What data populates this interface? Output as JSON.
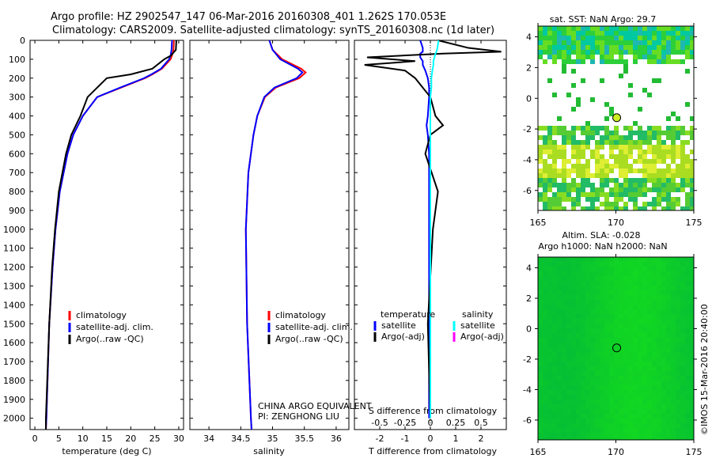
{
  "title": {
    "line1": "Argo profile: HZ 2902547_147 06-Mar-2016 20160308_401 1.262S 170.053E",
    "line2": "Climatology: CARS2009. Satellite-adjusted climatology: synTS_20160308.nc (1d later)"
  },
  "colors": {
    "climatology": "#ff0000",
    "satellite": "#0000ff",
    "argo": "#000000",
    "sal_satellite": "#00ffff",
    "sal_argo": "#ff00ff"
  },
  "depth_ticks": [
    0,
    100,
    200,
    300,
    400,
    500,
    600,
    700,
    800,
    900,
    1000,
    1100,
    1200,
    1300,
    1400,
    1500,
    1600,
    1700,
    1800,
    1900,
    2000
  ],
  "chart_data": [
    {
      "type": "line",
      "xlabel": "temperature (deg C)",
      "xlim": [
        -1,
        31
      ],
      "ylim": [
        2060,
        0
      ],
      "xticks": [
        0,
        5,
        10,
        15,
        20,
        25,
        30
      ],
      "legend": [
        "climatology",
        "satellite-adj. clim.",
        "Argo(..raw -QC)"
      ],
      "depth": [
        0,
        50,
        80,
        100,
        150,
        180,
        200,
        250,
        300,
        400,
        500,
        600,
        800,
        1000,
        1200,
        1500,
        2000,
        2060
      ],
      "series": [
        {
          "name": "climatology",
          "values": [
            29,
            28.9,
            28.6,
            28.3,
            26.5,
            24.5,
            23,
            18,
            13,
            10,
            8,
            6.8,
            5.2,
            4.3,
            3.7,
            3.0,
            2.4,
            2.3
          ]
        },
        {
          "name": "satellite-adj. clim.",
          "values": [
            28.6,
            28.5,
            28.3,
            28,
            26.3,
            24.3,
            22.8,
            17.8,
            13,
            10,
            8,
            6.8,
            5.2,
            4.3,
            3.7,
            3.0,
            2.4,
            2.3
          ]
        },
        {
          "name": "Argo(..raw -QC)",
          "values": [
            29.5,
            29.4,
            28.4,
            27,
            24.5,
            20,
            15,
            13,
            11,
            9.5,
            7.6,
            6.5,
            5,
            4.2,
            3.6,
            3.0,
            2.3,
            2.3
          ]
        }
      ]
    },
    {
      "type": "line",
      "xlabel": "salinity",
      "xlim": [
        33.7,
        36.2
      ],
      "ylim": [
        2060,
        0
      ],
      "xticks": [
        34,
        34.5,
        35,
        35.5,
        36
      ],
      "legend": [
        "climatology",
        "satellite-adj. clim.",
        "Argo(..raw -QC)"
      ],
      "annotation": [
        "CHINA ARGO EQUIVALENT",
        "PI: ZENGHONG LIU"
      ],
      "depth": [
        0,
        50,
        100,
        150,
        170,
        200,
        250,
        300,
        400,
        500,
        700,
        1000,
        1500,
        2000,
        2060
      ],
      "series": [
        {
          "name": "climatology",
          "values": [
            34.95,
            35.0,
            35.15,
            35.45,
            35.52,
            35.42,
            35.05,
            34.88,
            34.76,
            34.7,
            34.62,
            34.58,
            34.6,
            34.66,
            34.67
          ]
        },
        {
          "name": "satellite-adj. clim.",
          "values": [
            34.95,
            35.0,
            35.12,
            35.4,
            35.47,
            35.38,
            35.03,
            34.87,
            34.76,
            34.7,
            34.62,
            34.58,
            34.6,
            34.66,
            34.67
          ]
        }
      ]
    },
    {
      "type": "line",
      "xlabel": "T difference from climatology",
      "x2label": "S difference from climatology",
      "xlim": [
        -3,
        3
      ],
      "x2lim": [
        -0.75,
        0.75
      ],
      "ylim": [
        2060,
        0
      ],
      "xticks": [
        -2,
        -1,
        0,
        1,
        2
      ],
      "x2ticks": [
        -0.5,
        -0.25,
        0,
        0.25,
        0.5
      ],
      "x2ticklabels": [
        "-0.5",
        "-0.25",
        "0",
        "0.25",
        "0.5"
      ],
      "legend_headers": [
        "temperature",
        "salinity"
      ],
      "legend": [
        "satellite",
        "Argo(-adj)",
        "satellite",
        "Argo(-adj)"
      ],
      "depth": [
        0,
        40,
        60,
        70,
        90,
        110,
        130,
        160,
        200,
        250,
        300,
        400,
        450,
        500,
        600,
        800,
        1000,
        1500,
        2000
      ],
      "series": [
        {
          "name": "T satellite",
          "values": [
            -0.4,
            -0.3,
            -0.3,
            -0.4,
            -0.4,
            -0.3,
            -0.3,
            -0.2,
            -0.1,
            -0.05,
            -0.05,
            -0.1,
            -0.15,
            -0.1,
            -0.05,
            -0.05,
            -0.05,
            -0.05,
            -0.05
          ]
        },
        {
          "name": "T Argo(-adj)",
          "values": [
            0.3,
            1.5,
            2.8,
            0.5,
            -2.5,
            -0.6,
            -2.6,
            -1,
            -0.6,
            -0.3,
            0,
            0.2,
            0.5,
            0,
            -0.2,
            0.3,
            0.1,
            -0.1,
            0
          ]
        },
        {
          "name": "S satellite",
          "values": [
            0.08,
            0.07,
            0.06,
            0.05,
            0.04,
            0.03,
            0.03,
            0.02,
            0.01,
            0.01,
            0,
            0,
            0,
            0,
            0,
            0,
            0,
            0,
            0
          ]
        }
      ]
    },
    {
      "type": "heatmap",
      "title": "sat. SST: NaN Argo: 29.7",
      "xlim": [
        165,
        175
      ],
      "ylim": [
        -7.3,
        4.7
      ],
      "xticks": [
        165,
        170,
        175
      ],
      "yticks": [
        -6,
        -4,
        -2,
        0,
        2,
        4
      ],
      "marker": [
        170.053,
        -1.262
      ]
    },
    {
      "type": "heatmap",
      "title": [
        "Altim. SLA: -0.028",
        "Argo h1000: NaN h2000: NaN"
      ],
      "xlim": [
        165,
        175
      ],
      "ylim": [
        -7.3,
        4.7
      ],
      "xticks": [
        165,
        170,
        175
      ],
      "yticks": [
        -6,
        -4,
        -2,
        0,
        2,
        4
      ],
      "marker": [
        170.053,
        -1.262
      ]
    }
  ],
  "credit": "©IMOS 15-Mar-2016 20:40:00"
}
